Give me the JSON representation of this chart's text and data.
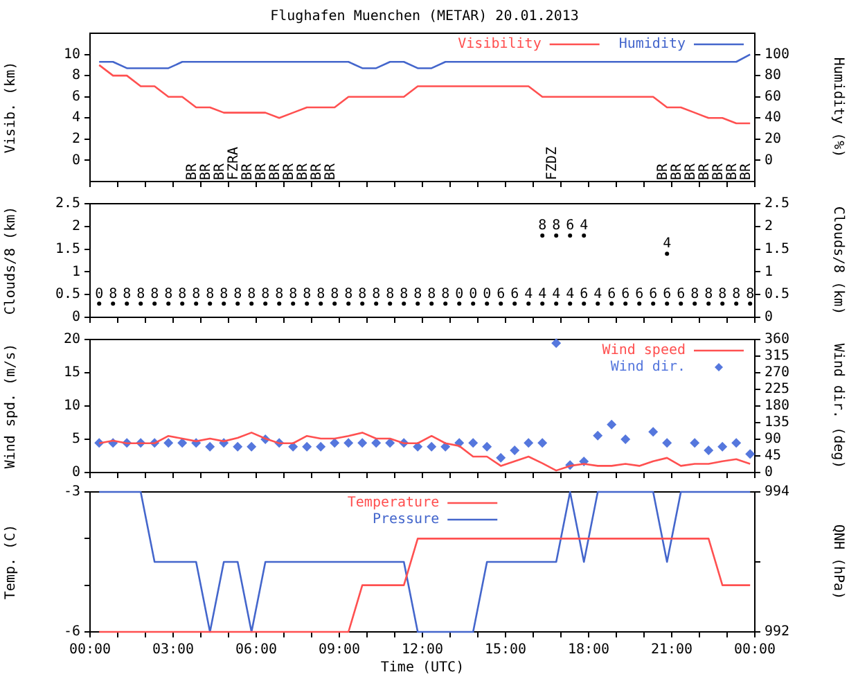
{
  "chart_data": [
    {
      "type": "line",
      "title": "Flughafen Muenchen (METAR) 20.01.2013",
      "ylabel": "Visib. (km)",
      "y2label": "Humidity (%)",
      "x": [
        0.33,
        0.83,
        1.33,
        1.83,
        2.33,
        2.83,
        3.33,
        3.83,
        4.33,
        4.83,
        5.33,
        5.83,
        6.33,
        6.83,
        7.33,
        7.83,
        8.33,
        8.83,
        9.33,
        9.83,
        10.33,
        10.83,
        11.33,
        11.83,
        12.33,
        12.83,
        13.33,
        13.83,
        14.33,
        14.83,
        15.33,
        15.83,
        16.33,
        16.83,
        17.33,
        17.83,
        18.33,
        18.83,
        19.33,
        19.83,
        20.33,
        20.83,
        21.33,
        21.83,
        22.33,
        22.83,
        23.33,
        23.83
      ],
      "xlim": [
        0,
        24
      ],
      "xticks": [
        {
          "value": 0,
          "label": null
        },
        {
          "value": 1,
          "label": null
        },
        {
          "value": 2,
          "label": null
        },
        {
          "value": 3,
          "label": null
        },
        {
          "value": 4,
          "label": null
        },
        {
          "value": 5,
          "label": null
        },
        {
          "value": 6,
          "label": null
        },
        {
          "value": 7,
          "label": null
        },
        {
          "value": 8,
          "label": null
        },
        {
          "value": 9,
          "label": null
        },
        {
          "value": 10,
          "label": null
        },
        {
          "value": 11,
          "label": null
        },
        {
          "value": 12,
          "label": null
        },
        {
          "value": 13,
          "label": null
        },
        {
          "value": 14,
          "label": null
        },
        {
          "value": 15,
          "label": null
        },
        {
          "value": 16,
          "label": null
        },
        {
          "value": 17,
          "label": null
        },
        {
          "value": 18,
          "label": null
        },
        {
          "value": 19,
          "label": null
        },
        {
          "value": 20,
          "label": null
        },
        {
          "value": 21,
          "label": null
        },
        {
          "value": 22,
          "label": null
        },
        {
          "value": 23,
          "label": null
        },
        {
          "value": 24,
          "label": null
        }
      ],
      "ylim": [
        -2,
        12
      ],
      "yticks": [
        0,
        2,
        4,
        6,
        8,
        10
      ],
      "y2lim": [
        -20,
        120
      ],
      "y2ticks": [
        0,
        20,
        40,
        60,
        80,
        100
      ],
      "tick_labels": "y",
      "legend": "top right",
      "series": [
        {
          "name": "Visibility",
          "color": "#ff5050",
          "values": [
            9,
            8,
            8,
            7,
            7,
            6,
            6,
            5,
            5,
            4.5,
            4.5,
            4.5,
            4.5,
            4,
            4.5,
            5,
            5,
            5,
            6,
            6,
            6,
            6,
            6,
            7,
            7,
            7,
            7,
            7,
            7,
            7,
            7,
            7,
            6,
            6,
            6,
            6,
            6,
            6,
            6,
            6,
            6,
            5,
            5,
            4.5,
            4,
            4,
            3.5,
            3.5
          ]
        },
        {
          "name": "Humidity",
          "color": "#4466cc",
          "axis": "y2",
          "values": [
            93,
            93,
            87,
            87,
            87,
            87,
            93,
            93,
            93,
            93,
            93,
            93,
            93,
            93,
            93,
            93,
            93,
            93,
            93,
            87,
            87,
            93,
            93,
            87,
            87,
            93,
            93,
            93,
            93,
            93,
            93,
            93,
            93,
            93,
            93,
            93,
            93,
            93,
            93,
            93,
            93,
            93,
            93,
            93,
            93,
            93,
            93,
            100
          ]
        }
      ],
      "annotations": [
        "BR",
        "BR",
        "BR",
        "FZRA",
        "BR",
        "BR",
        "BR",
        "BR",
        "BR",
        "BR",
        "BR",
        "FZDZ",
        "BR",
        "BR",
        "BR",
        "BR",
        "BR",
        "BR",
        "BR"
      ]
    },
    {
      "type": "scatter",
      "ylabel": "Clouds/8 (km)",
      "y2label": "Clouds/8 (km)",
      "x": [
        0.33,
        0.83,
        1.33,
        1.83,
        2.33,
        2.83,
        3.33,
        3.83,
        4.33,
        4.83,
        5.33,
        5.83,
        6.33,
        6.83,
        7.33,
        7.83,
        8.33,
        8.83,
        9.33,
        9.83,
        10.33,
        10.83,
        11.33,
        11.83,
        12.33,
        12.83,
        13.33,
        13.83,
        14.33,
        14.83,
        15.33,
        15.83,
        16.33,
        16.83,
        17.33,
        17.83,
        18.33,
        18.83,
        19.33,
        19.83,
        20.33,
        20.83,
        21.33,
        21.83,
        22.33,
        22.83,
        23.33,
        23.83
      ],
      "xlim": [
        0,
        24
      ],
      "xticks": [
        {
          "value": 0,
          "label": null
        },
        {
          "value": 1,
          "label": null
        },
        {
          "value": 2,
          "label": null
        },
        {
          "value": 3,
          "label": null
        },
        {
          "value": 4,
          "label": null
        },
        {
          "value": 5,
          "label": null
        },
        {
          "value": 6,
          "label": null
        },
        {
          "value": 7,
          "label": null
        },
        {
          "value": 8,
          "label": null
        },
        {
          "value": 9,
          "label": null
        },
        {
          "value": 10,
          "label": null
        },
        {
          "value": 11,
          "label": null
        },
        {
          "value": 12,
          "label": null
        },
        {
          "value": 13,
          "label": null
        },
        {
          "value": 14,
          "label": null
        },
        {
          "value": 15,
          "label": null
        },
        {
          "value": 16,
          "label": null
        },
        {
          "value": 17,
          "label": null
        },
        {
          "value": 18,
          "label": null
        },
        {
          "value": 19,
          "label": null
        },
        {
          "value": 20,
          "label": null
        },
        {
          "value": 21,
          "label": null
        },
        {
          "value": 22,
          "label": null
        },
        {
          "value": 23,
          "label": null
        },
        {
          "value": 24,
          "label": null
        }
      ],
      "ylim": [
        0,
        2.5
      ],
      "yticks": [
        0,
        0.5,
        1,
        1.5,
        2,
        2.5
      ],
      "y2lim": [
        0,
        2.5
      ],
      "y2ticks": [
        0,
        0.5,
        1,
        1.5,
        2,
        2.5
      ],
      "tick_labels": "y",
      "marker": "circle",
      "series": [
        {
          "color": "#000000",
          "values": [
            0.3,
            0.3,
            0.3,
            0.3,
            0.3,
            0.3,
            0.3,
            0.3,
            0.3,
            0.3,
            0.3,
            0.3,
            0.3,
            0.3,
            0.3,
            0.3,
            0.3,
            0.3,
            0.3,
            0.3,
            0.3,
            0.3,
            0.3,
            0.3,
            0.3,
            0.3,
            0.3,
            0.3,
            0.3,
            0.3,
            0.3,
            0.3,
            0.3,
            0.3,
            0.3,
            0.3,
            0.3,
            0.3,
            0.3,
            0.3,
            0.3,
            0.3,
            0.3,
            0.3,
            0.3,
            0.3,
            0.3,
            0.3
          ]
        },
        {
          "color": "#000000",
          "values": [
            null,
            null,
            null,
            null,
            null,
            null,
            null,
            null,
            null,
            null,
            null,
            null,
            null,
            null,
            null,
            null,
            null,
            null,
            null,
            null,
            null,
            null,
            null,
            null,
            null,
            null,
            null,
            null,
            null,
            null,
            null,
            null,
            1.8,
            1.8,
            1.8,
            1.8,
            null,
            null,
            null,
            null,
            null,
            1.4,
            null,
            null,
            null,
            null,
            null,
            null
          ]
        }
      ],
      "annotations": [
        {
          "text": "0",
          "x": 0.33,
          "y": 0.3
        },
        {
          "text": "8",
          "x": 0.83,
          "y": 0.3
        },
        {
          "text": "8",
          "x": 1.33,
          "y": 0.3
        },
        {
          "text": "8",
          "x": 1.83,
          "y": 0.3
        },
        {
          "text": "8",
          "x": 2.33,
          "y": 0.3
        },
        {
          "text": "8",
          "x": 2.83,
          "y": 0.3
        },
        {
          "text": "8",
          "x": 3.33,
          "y": 0.3
        },
        {
          "text": "8",
          "x": 3.83,
          "y": 0.3
        },
        {
          "text": "8",
          "x": 4.33,
          "y": 0.3
        },
        {
          "text": "8",
          "x": 4.83,
          "y": 0.3
        },
        {
          "text": "8",
          "x": 5.33,
          "y": 0.3
        },
        {
          "text": "8",
          "x": 5.83,
          "y": 0.3
        },
        {
          "text": "8",
          "x": 6.33,
          "y": 0.3
        },
        {
          "text": "8",
          "x": 6.83,
          "y": 0.3
        },
        {
          "text": "8",
          "x": 7.33,
          "y": 0.3
        },
        {
          "text": "8",
          "x": 7.83,
          "y": 0.3
        },
        {
          "text": "8",
          "x": 8.33,
          "y": 0.3
        },
        {
          "text": "8",
          "x": 8.83,
          "y": 0.3
        },
        {
          "text": "8",
          "x": 9.33,
          "y": 0.3
        },
        {
          "text": "8",
          "x": 9.83,
          "y": 0.3
        },
        {
          "text": "8",
          "x": 10.33,
          "y": 0.3
        },
        {
          "text": "8",
          "x": 10.83,
          "y": 0.3
        },
        {
          "text": "8",
          "x": 11.33,
          "y": 0.3
        },
        {
          "text": "8",
          "x": 11.83,
          "y": 0.3
        },
        {
          "text": "8",
          "x": 12.33,
          "y": 0.3
        },
        {
          "text": "8",
          "x": 12.83,
          "y": 0.3
        },
        {
          "text": "0",
          "x": 13.33,
          "y": 0.3
        },
        {
          "text": "0",
          "x": 13.83,
          "y": 0.3
        },
        {
          "text": "0",
          "x": 14.33,
          "y": 0.3
        },
        {
          "text": "6",
          "x": 14.83,
          "y": 0.3
        },
        {
          "text": "6",
          "x": 15.33,
          "y": 0.3
        },
        {
          "text": "4",
          "x": 15.83,
          "y": 0.3
        },
        {
          "text": "4",
          "x": 16.33,
          "y": 0.3
        },
        {
          "text": "4",
          "x": 16.83,
          "y": 0.3
        },
        {
          "text": "4",
          "x": 17.33,
          "y": 0.3
        },
        {
          "text": "6",
          "x": 17.83,
          "y": 0.3
        },
        {
          "text": "4",
          "x": 18.33,
          "y": 0.3
        },
        {
          "text": "6",
          "x": 18.83,
          "y": 0.3
        },
        {
          "text": "6",
          "x": 19.33,
          "y": 0.3
        },
        {
          "text": "6",
          "x": 19.83,
          "y": 0.3
        },
        {
          "text": "6",
          "x": 20.33,
          "y": 0.3
        },
        {
          "text": "6",
          "x": 20.83,
          "y": 0.3
        },
        {
          "text": "6",
          "x": 21.33,
          "y": 0.3
        },
        {
          "text": "8",
          "x": 21.83,
          "y": 0.3
        },
        {
          "text": "8",
          "x": 22.33,
          "y": 0.3
        },
        {
          "text": "8",
          "x": 22.83,
          "y": 0.3
        },
        {
          "text": "8",
          "x": 23.33,
          "y": 0.3
        },
        {
          "text": "8",
          "x": 23.83,
          "y": 0.3
        },
        {
          "text": "8",
          "x": 16.33,
          "y": 1.8
        },
        {
          "text": "8",
          "x": 16.83,
          "y": 1.8
        },
        {
          "text": "6",
          "x": 17.33,
          "y": 1.8
        },
        {
          "text": "4",
          "x": 17.83,
          "y": 1.8
        },
        {
          "text": "4",
          "x": 20.83,
          "y": 1.4
        }
      ]
    },
    {
      "type": "line",
      "ylabel": "Wind spd. (m/s)",
      "y2label": "Wind dir. (deg)",
      "x": [
        0.33,
        0.83,
        1.33,
        1.83,
        2.33,
        2.83,
        3.33,
        3.83,
        4.33,
        4.83,
        5.33,
        5.83,
        6.33,
        6.83,
        7.33,
        7.83,
        8.33,
        8.83,
        9.33,
        9.83,
        10.33,
        10.83,
        11.33,
        11.83,
        12.33,
        12.83,
        13.33,
        13.83,
        14.33,
        14.83,
        15.33,
        15.83,
        16.33,
        16.83,
        17.33,
        17.83,
        18.33,
        18.83,
        19.33,
        19.83,
        20.33,
        20.83,
        21.33,
        21.83,
        22.33,
        22.83,
        23.33,
        23.83
      ],
      "xlim": [
        0,
        24
      ],
      "xticks": [
        {
          "value": 0,
          "label": null
        },
        {
          "value": 1,
          "label": null
        },
        {
          "value": 2,
          "label": null
        },
        {
          "value": 3,
          "label": null
        },
        {
          "value": 4,
          "label": null
        },
        {
          "value": 5,
          "label": null
        },
        {
          "value": 6,
          "label": null
        },
        {
          "value": 7,
          "label": null
        },
        {
          "value": 8,
          "label": null
        },
        {
          "value": 9,
          "label": null
        },
        {
          "value": 10,
          "label": null
        },
        {
          "value": 11,
          "label": null
        },
        {
          "value": 12,
          "label": null
        },
        {
          "value": 13,
          "label": null
        },
        {
          "value": 14,
          "label": null
        },
        {
          "value": 15,
          "label": null
        },
        {
          "value": 16,
          "label": null
        },
        {
          "value": 17,
          "label": null
        },
        {
          "value": 18,
          "label": null
        },
        {
          "value": 19,
          "label": null
        },
        {
          "value": 20,
          "label": null
        },
        {
          "value": 21,
          "label": null
        },
        {
          "value": 22,
          "label": null
        },
        {
          "value": 23,
          "label": null
        },
        {
          "value": 24,
          "label": null
        }
      ],
      "ylim": [
        0,
        20
      ],
      "yticks": [
        0,
        5,
        10,
        15,
        20
      ],
      "y2lim": [
        0,
        360
      ],
      "y2ticks": [
        0,
        45,
        90,
        135,
        180,
        225,
        270,
        315,
        360
      ],
      "tick_labels": "y",
      "legend": "top right",
      "marker": "none",
      "series": [
        {
          "name": "Wind speed",
          "color": "#ff5050",
          "values": [
            4.4,
            4.8,
            4.4,
            4.4,
            4.4,
            5.5,
            5.1,
            4.7,
            5.1,
            4.7,
            5.2,
            6.0,
            5.1,
            4.4,
            4.4,
            5.5,
            5.1,
            5.1,
            5.5,
            6.0,
            5.1,
            5.1,
            4.4,
            4.4,
            5.5,
            4.4,
            4.0,
            2.4,
            2.4,
            1.0,
            1.7,
            2.4,
            1.4,
            0.3,
            1.0,
            1.3,
            1.0,
            1.0,
            1.3,
            1.0,
            1.7,
            2.2,
            1.0,
            1.3,
            1.3,
            1.7,
            2.0,
            1.3
          ]
        },
        {
          "name": "Wind dir.",
          "color": "#5577dd",
          "type": "scatter",
          "marker": "diamond",
          "axis": "y2",
          "values": [
            80,
            80,
            80,
            80,
            80,
            80,
            80,
            80,
            70,
            80,
            70,
            70,
            90,
            80,
            70,
            70,
            70,
            80,
            80,
            80,
            80,
            80,
            80,
            70,
            70,
            70,
            80,
            80,
            70,
            40,
            60,
            80,
            80,
            350,
            20,
            30,
            100,
            130,
            90,
            null,
            110,
            80,
            null,
            80,
            60,
            70,
            80,
            50
          ]
        }
      ]
    },
    {
      "type": "line",
      "ylabel": "Temp. (C)",
      "y2label": "QNH (hPa)",
      "xlabel": "Time (UTC)",
      "x": [
        0.33,
        0.83,
        1.33,
        1.83,
        2.33,
        2.83,
        3.33,
        3.83,
        4.33,
        4.83,
        5.33,
        5.83,
        6.33,
        6.83,
        7.33,
        7.83,
        8.33,
        8.83,
        9.33,
        9.83,
        10.33,
        10.83,
        11.33,
        11.83,
        12.33,
        12.83,
        13.33,
        13.83,
        14.33,
        14.83,
        15.33,
        15.83,
        16.33,
        16.83,
        17.33,
        17.83,
        18.33,
        18.83,
        19.33,
        19.83,
        20.33,
        20.83,
        21.33,
        21.83,
        22.33,
        22.83,
        23.33,
        23.83
      ],
      "xlim": [
        0,
        24
      ],
      "xticks": [
        {
          "value": 0,
          "label": "00:00"
        },
        {
          "value": 1,
          "label": null
        },
        {
          "value": 2,
          "label": null
        },
        {
          "value": 3,
          "label": "03:00"
        },
        {
          "value": 4,
          "label": null
        },
        {
          "value": 5,
          "label": null
        },
        {
          "value": 6,
          "label": "06:00"
        },
        {
          "value": 7,
          "label": null
        },
        {
          "value": 8,
          "label": null
        },
        {
          "value": 9,
          "label": "09:00"
        },
        {
          "value": 10,
          "label": null
        },
        {
          "value": 11,
          "label": null
        },
        {
          "value": 12,
          "label": "12:00"
        },
        {
          "value": 13,
          "label": null
        },
        {
          "value": 14,
          "label": null
        },
        {
          "value": 15,
          "label": "15:00"
        },
        {
          "value": 16,
          "label": null
        },
        {
          "value": 17,
          "label": null
        },
        {
          "value": 18,
          "label": "18:00"
        },
        {
          "value": 19,
          "label": null
        },
        {
          "value": 20,
          "label": null
        },
        {
          "value": 21,
          "label": "21:00"
        },
        {
          "value": 22,
          "label": null
        },
        {
          "value": 23,
          "label": null
        },
        {
          "value": 24,
          "label": "00:00"
        }
      ],
      "ylim": [
        -6,
        -3
      ],
      "yticks": [
        -6,
        {
          "value": -5,
          "label": null
        },
        {
          "value": -4,
          "label": null
        },
        -3
      ],
      "y2lim": [
        992,
        994
      ],
      "y2ticks": [
        992,
        {
          "value": 993,
          "label": null
        },
        994
      ],
      "legend": "top",
      "series": [
        {
          "name": "Temperature",
          "color": "#ff5050",
          "values": [
            -6,
            -6,
            -6,
            -6,
            -6,
            -6,
            -6,
            -6,
            -6,
            -6,
            -6,
            -6,
            -6,
            -6,
            -6,
            -6,
            -6,
            -6,
            -6,
            -5,
            -5,
            -5,
            -5,
            -4,
            -4,
            -4,
            -4,
            -4,
            -4,
            -4,
            -4,
            -4,
            -4,
            -4,
            -4,
            -4,
            -4,
            -4,
            -4,
            -4,
            -4,
            -4,
            -4,
            -4,
            -4,
            -5,
            -5,
            -5
          ]
        },
        {
          "name": "Pressure",
          "color": "#4466cc",
          "axis": "y2",
          "values": [
            994,
            994,
            994,
            994,
            993,
            993,
            993,
            993,
            992,
            993,
            993,
            992,
            993,
            993,
            993,
            993,
            993,
            993,
            993,
            993,
            993,
            993,
            993,
            992,
            992,
            992,
            992,
            992,
            993,
            993,
            993,
            993,
            993,
            993,
            994,
            993,
            994,
            994,
            994,
            994,
            994,
            993,
            994,
            994,
            994,
            994,
            994,
            994
          ]
        }
      ]
    }
  ]
}
